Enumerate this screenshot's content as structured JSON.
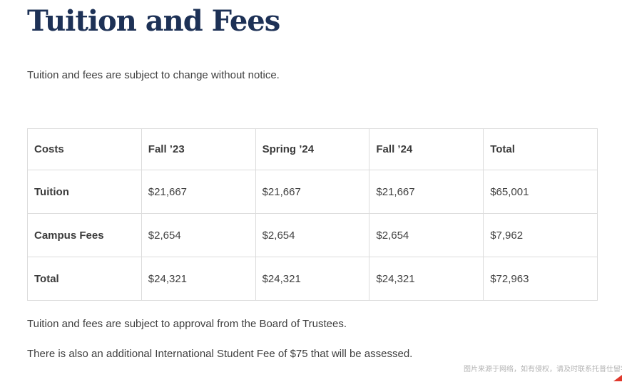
{
  "page": {
    "title": "Tuition and Fees",
    "intro": "Tuition and fees are subject to change without notice.",
    "notes": [
      "Tuition and fees are subject to approval from the Board of Trustees.",
      "There is also an additional International Student Fee of $75 that will be assessed."
    ]
  },
  "table": {
    "columns": [
      "Costs",
      "Fall ’23",
      "Spring ’24",
      "Fall ’24",
      "Total"
    ],
    "rows": [
      {
        "label": "Tuition",
        "values": [
          "$21,667",
          "$21,667",
          "$21,667",
          "$65,001"
        ]
      },
      {
        "label": "Campus Fees",
        "values": [
          "$2,654",
          "$2,654",
          "$2,654",
          "$7,962"
        ]
      },
      {
        "label": "Total",
        "values": [
          "$24,321",
          "$24,321",
          "$24,321",
          "$72,963"
        ]
      }
    ]
  },
  "watermark": {
    "text": "图片来源于网络，如有侵权，请及时联系托普仕留学顾问"
  },
  "colors": {
    "title": "#1d3156",
    "body_text": "#3f3f3f",
    "table_border": "#dcdcdc",
    "watermark_text": "#b3b3b3",
    "corner_accent": "#e0382c"
  }
}
